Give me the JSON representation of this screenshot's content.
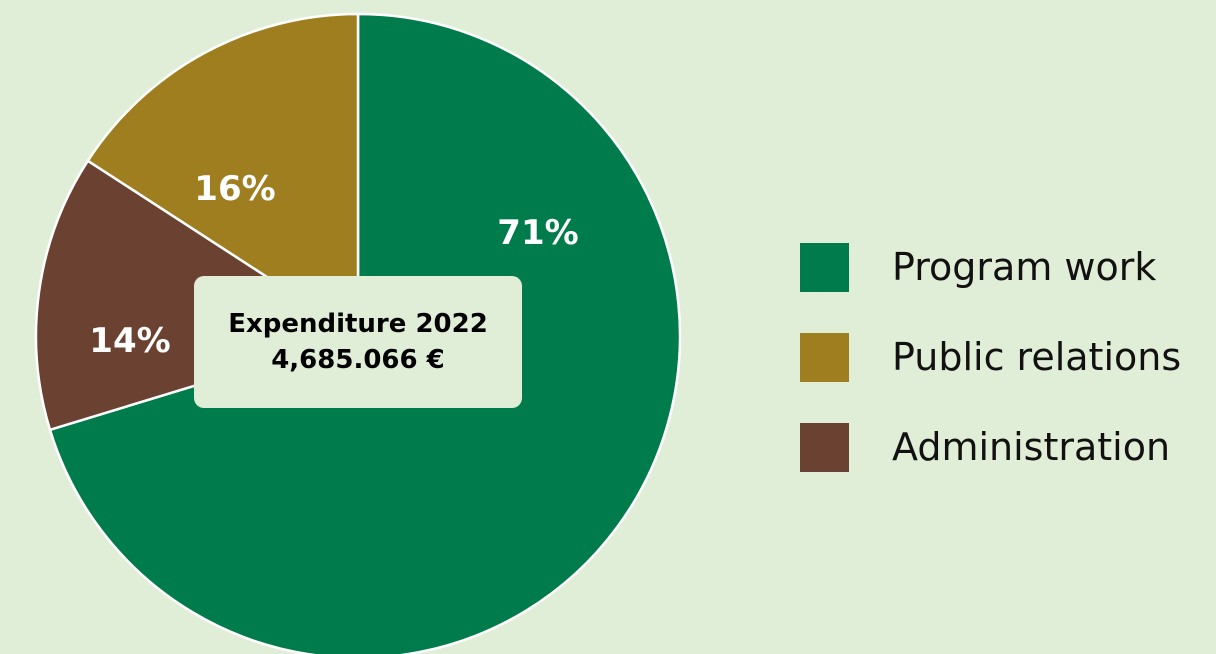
{
  "chart_data": {
    "type": "pie",
    "title": "",
    "center_label": {
      "line1": "Expenditure 2022",
      "line2": "4,685.066 €"
    },
    "slices": [
      {
        "name": "Program work",
        "value": 71,
        "label": "71%",
        "color": "#007b4b"
      },
      {
        "name": "Public relations",
        "value": 16,
        "label": "16%",
        "color": "#9e7e1f"
      },
      {
        "name": "Administration",
        "value": 14,
        "label": "14%",
        "color": "#6b4232"
      }
    ],
    "legend_position": "right",
    "background_color": "#e1eed7"
  }
}
